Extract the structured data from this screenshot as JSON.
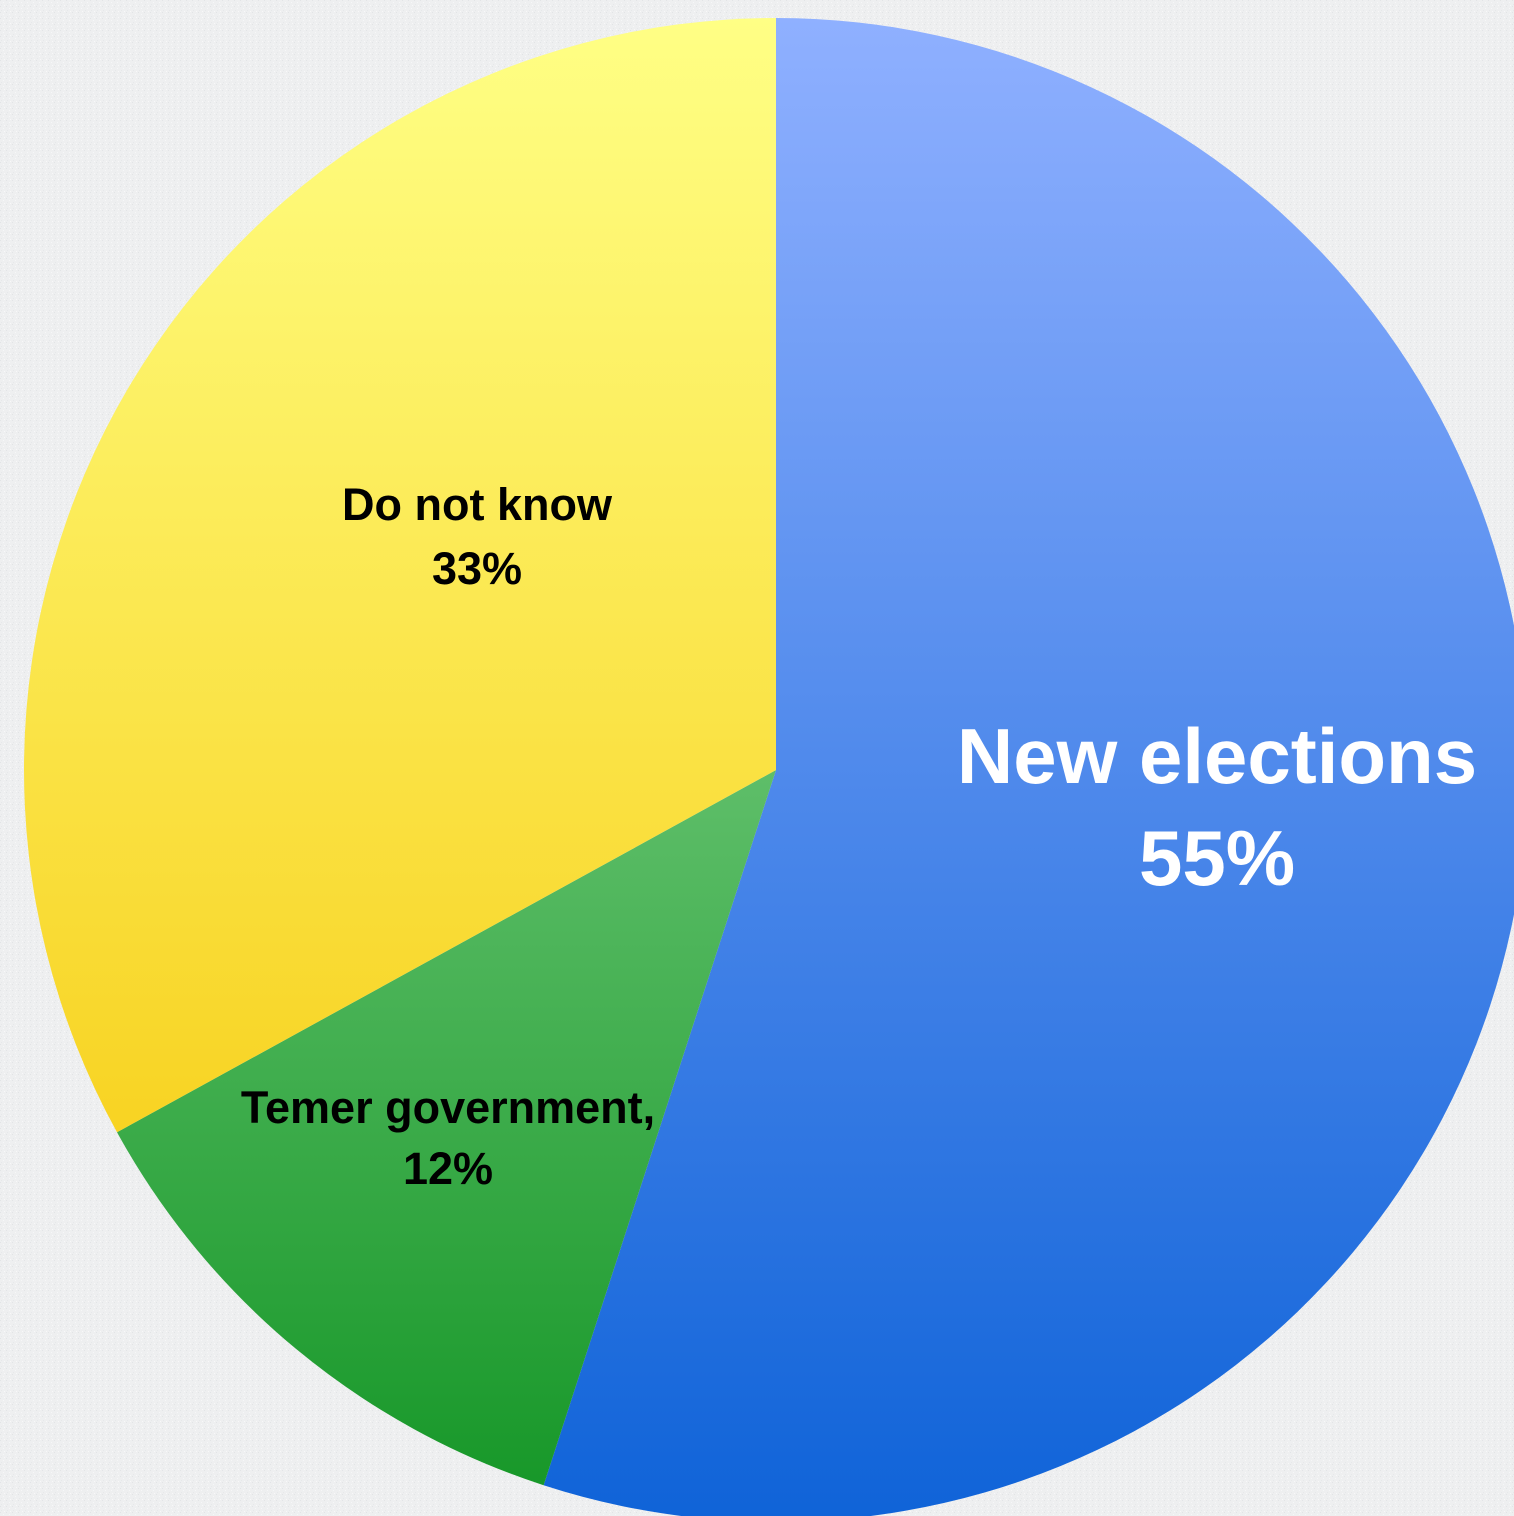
{
  "chart_data": {
    "type": "pie",
    "slices": [
      {
        "name": "New elections",
        "value": 55,
        "label_line1": "New elections",
        "label_line2": "55%",
        "color_top": "#8fb0ff",
        "color_bottom": "#0f63d8",
        "label_color": "#ffffff"
      },
      {
        "name": "Temer government",
        "value": 12,
        "label_line1": "Temer government,",
        "label_line2": "12%",
        "color_top": "#a8e6ac",
        "color_bottom": "#149626",
        "label_color": "#000000"
      },
      {
        "name": "Do not know",
        "value": 33,
        "label_line1": "Do not know",
        "label_line2": "33%",
        "color_top": "#ffff85",
        "color_bottom": "#f5c400",
        "label_color": "#000000"
      }
    ],
    "start_angle": "12 o'clock",
    "direction": "clockwise",
    "title": "",
    "legend": "none"
  }
}
